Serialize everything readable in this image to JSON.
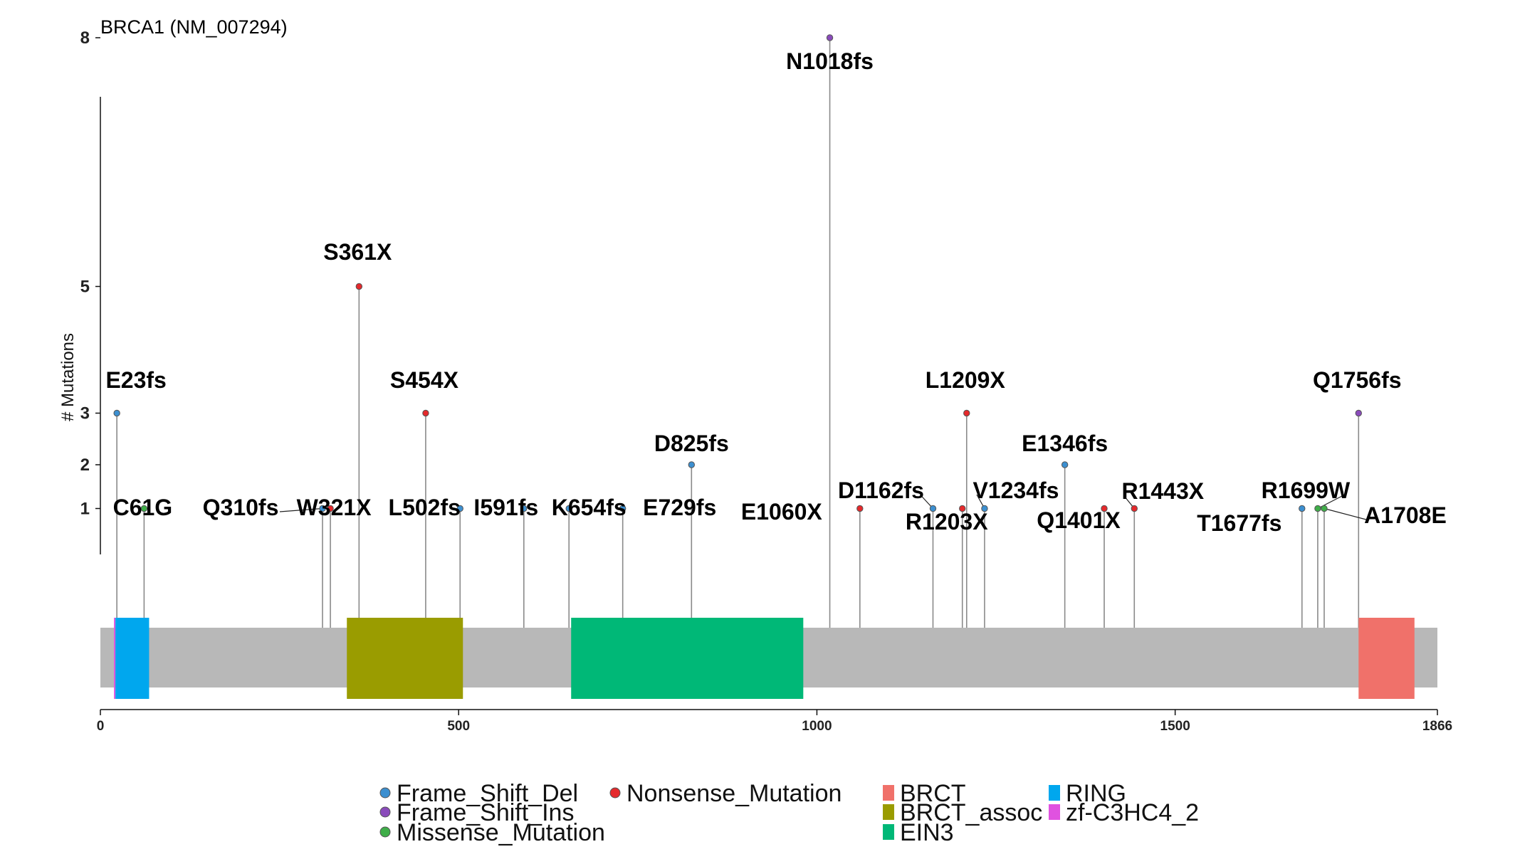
{
  "chart_data": {
    "type": "lollipop",
    "title": "BRCA1 (NM_007294)",
    "ylabel": "# Mutations",
    "ylim": [
      0,
      8
    ],
    "y_ticks": [
      1,
      2,
      3,
      5,
      8
    ],
    "y_tick_labels": [
      "1",
      "2",
      "3",
      "5",
      "8"
    ],
    "xlim": [
      0,
      1866
    ],
    "x_ticks": [
      0,
      500,
      1000,
      1500,
      1866
    ],
    "x_tick_labels": [
      "0",
      "500",
      "1000",
      "1500",
      "1866"
    ],
    "protein_length": 1866,
    "mutation_colors": {
      "Frame_Shift_Del": "#3c8fd0",
      "Frame_Shift_Ins": "#8a4bbb",
      "Missense_Mutation": "#3fae49",
      "Nonsense_Mutation": "#e5292c"
    },
    "mutations": [
      {
        "label": "E23fs",
        "pos": 23,
        "count": 3,
        "type": "Frame_Shift_Del"
      },
      {
        "label": "C61G",
        "pos": 61,
        "count": 1,
        "type": "Missense_Mutation"
      },
      {
        "label": "Q310fs",
        "pos": 310,
        "count": 1,
        "type": "Frame_Shift_Del"
      },
      {
        "label": "W321X",
        "pos": 321,
        "count": 1,
        "type": "Nonsense_Mutation"
      },
      {
        "label": "S361X",
        "pos": 361,
        "count": 5,
        "type": "Nonsense_Mutation"
      },
      {
        "label": "S454X",
        "pos": 454,
        "count": 3,
        "type": "Nonsense_Mutation"
      },
      {
        "label": "L502fs",
        "pos": 502,
        "count": 1,
        "type": "Frame_Shift_Del"
      },
      {
        "label": "I591fs",
        "pos": 591,
        "count": 1,
        "type": "Frame_Shift_Del"
      },
      {
        "label": "K654fs",
        "pos": 654,
        "count": 1,
        "type": "Frame_Shift_Del"
      },
      {
        "label": "E729fs",
        "pos": 729,
        "count": 1,
        "type": "Frame_Shift_Del"
      },
      {
        "label": "D825fs",
        "pos": 825,
        "count": 2,
        "type": "Frame_Shift_Del"
      },
      {
        "label": "N1018fs",
        "pos": 1018,
        "count": 8,
        "type": "Frame_Shift_Ins"
      },
      {
        "label": "E1060X",
        "pos": 1060,
        "count": 1,
        "type": "Nonsense_Mutation"
      },
      {
        "label": "D1162fs",
        "pos": 1162,
        "count": 1,
        "type": "Frame_Shift_Del"
      },
      {
        "label": "R1203X",
        "pos": 1203,
        "count": 1,
        "type": "Nonsense_Mutation"
      },
      {
        "label": "L1209X",
        "pos": 1209,
        "count": 3,
        "type": "Nonsense_Mutation"
      },
      {
        "label": "V1234fs",
        "pos": 1234,
        "count": 1,
        "type": "Frame_Shift_Del"
      },
      {
        "label": "E1346fs",
        "pos": 1346,
        "count": 2,
        "type": "Frame_Shift_Del"
      },
      {
        "label": "Q1401X",
        "pos": 1401,
        "count": 1,
        "type": "Nonsense_Mutation"
      },
      {
        "label": "R1443X",
        "pos": 1443,
        "count": 1,
        "type": "Nonsense_Mutation"
      },
      {
        "label": "T1677fs",
        "pos": 1677,
        "count": 1,
        "type": "Frame_Shift_Del"
      },
      {
        "label": "R1699W",
        "pos": 1699,
        "count": 1,
        "type": "Missense_Mutation"
      },
      {
        "label": "A1708E",
        "pos": 1708,
        "count": 1,
        "type": "Missense_Mutation"
      },
      {
        "label": "Q1756fs",
        "pos": 1756,
        "count": 3,
        "type": "Frame_Shift_Ins"
      }
    ],
    "domains": [
      {
        "name": "zf-C3HC4_2",
        "start": 19,
        "end": 21,
        "color": "#e052e0"
      },
      {
        "name": "RING",
        "start": 21,
        "end": 68,
        "color": "#00a7ee"
      },
      {
        "name": "BRCT_assoc",
        "start": 344,
        "end": 506,
        "color": "#9a9c00"
      },
      {
        "name": "EIN3",
        "start": 657,
        "end": 981,
        "color": "#00b877"
      },
      {
        "name": "BRCT",
        "start": 1756,
        "end": 1834,
        "color": "#f0716a"
      }
    ],
    "legend": {
      "mutation_types": [
        "Frame_Shift_Del",
        "Frame_Shift_Ins",
        "Missense_Mutation",
        "Nonsense_Mutation"
      ],
      "domain_types": [
        "BRCT",
        "BRCT_assoc",
        "EIN3",
        "RING",
        "zf-C3HC4_2"
      ],
      "placement": "bottom"
    }
  }
}
